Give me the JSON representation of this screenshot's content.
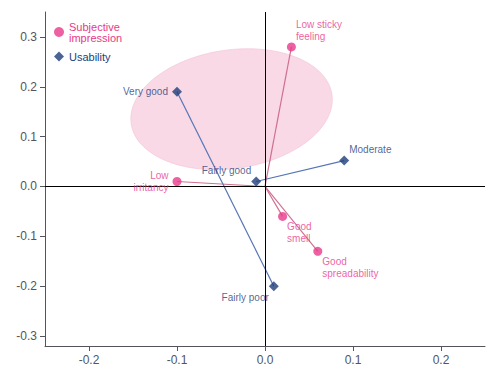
{
  "chart_data": {
    "type": "scatter",
    "series": [
      {
        "name": "Subjective\nimpression",
        "color": "#E8388A",
        "marker": "circle",
        "x": [
          0.03,
          -0.1,
          0.02,
          0.06
        ],
        "y": [
          0.28,
          0.01,
          -0.06,
          -0.13
        ],
        "labels": [
          "Low sticky\nfeeling",
          "Low\nirritancy",
          "Good\nsmell",
          "Good\nspreadability"
        ]
      },
      {
        "name": "Usability",
        "color": "#1F3D7A",
        "marker": "diamond",
        "x": [
          -0.1,
          -0.01,
          0.09,
          0.01
        ],
        "y": [
          0.19,
          0.01,
          0.052,
          -0.2
        ],
        "labels": [
          "Very good",
          "Fairly good",
          "Moderate",
          "Fairly poor"
        ]
      }
    ],
    "segments": [
      {
        "color": "#D07090",
        "lines": [
          [
            [
              0,
              0
            ],
            [
              0.03,
              0.28
            ]
          ],
          [
            [
              0,
              0
            ],
            [
              -0.1,
              0.01
            ]
          ],
          [
            [
              0,
              0
            ],
            [
              0.02,
              -0.06
            ]
          ],
          [
            [
              0,
              0
            ],
            [
              0.06,
              -0.13
            ]
          ]
        ]
      },
      {
        "color": "#5575B5",
        "lines": [
          [
            [
              -0.1,
              0.19
            ],
            [
              0.01,
              -0.2
            ]
          ],
          [
            [
              -0.01,
              0.01
            ],
            [
              0.09,
              0.052
            ]
          ]
        ]
      }
    ],
    "ellipse": {
      "center": [
        -0.038,
        0.155
      ],
      "width": 0.215,
      "height": 0.255,
      "angle": -35,
      "color": "#F5C0D5"
    },
    "reference_lines": {
      "x": [
        0
      ],
      "y": [
        0
      ]
    },
    "xlim": [
      -0.25,
      0.25
    ],
    "ylim": [
      -0.32,
      0.35
    ],
    "xticks": [
      -0.2,
      -0.1,
      {
        "value": 0,
        "label": "0.0"
      },
      0.1,
      0.2
    ],
    "yticks": [
      -0.3,
      -0.2,
      -0.1,
      {
        "value": 0,
        "label": "0.0"
      },
      0.1,
      0.2,
      0.3
    ],
    "legend": "upper left",
    "grid": false
  }
}
